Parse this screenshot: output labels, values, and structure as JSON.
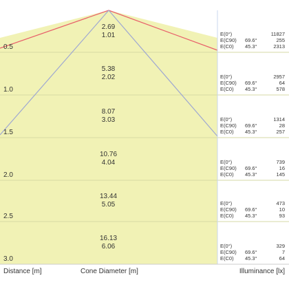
{
  "rows": [
    {
      "distance": "0.5",
      "diam_top": "2.69",
      "diam_bot": "1.01",
      "ill": [
        {
          "label": "E(0°)",
          "angle": "",
          "value": "11827"
        },
        {
          "label": "E(C90)",
          "angle": "69.6°",
          "value": "255"
        },
        {
          "label": "E(C0)",
          "angle": "45.3°",
          "value": "2313"
        }
      ]
    },
    {
      "distance": "1.0",
      "diam_top": "5.38",
      "diam_bot": "2.02",
      "ill": [
        {
          "label": "E(0°)",
          "angle": "",
          "value": "2957"
        },
        {
          "label": "E(C90)",
          "angle": "69.6°",
          "value": "64"
        },
        {
          "label": "E(C0)",
          "angle": "45.3°",
          "value": "578"
        }
      ]
    },
    {
      "distance": "1.5",
      "diam_top": "8.07",
      "diam_bot": "3.03",
      "ill": [
        {
          "label": "E(0°)",
          "angle": "",
          "value": "1314"
        },
        {
          "label": "E(C90)",
          "angle": "69.6°",
          "value": "28"
        },
        {
          "label": "E(C0)",
          "angle": "45.3°",
          "value": "257"
        }
      ]
    },
    {
      "distance": "2.0",
      "diam_top": "10.76",
      "diam_bot": "4.04",
      "ill": [
        {
          "label": "E(0°)",
          "angle": "",
          "value": "739"
        },
        {
          "label": "E(C90)",
          "angle": "69.6°",
          "value": "16"
        },
        {
          "label": "E(C0)",
          "angle": "45.3°",
          "value": "145"
        }
      ]
    },
    {
      "distance": "2.5",
      "diam_top": "13.44",
      "diam_bot": "5.05",
      "ill": [
        {
          "label": "E(0°)",
          "angle": "",
          "value": "473"
        },
        {
          "label": "E(C90)",
          "angle": "69.6°",
          "value": "10"
        },
        {
          "label": "E(C0)",
          "angle": "45.3°",
          "value": "93"
        }
      ]
    },
    {
      "distance": "3.0",
      "diam_top": "16.13",
      "diam_bot": "6.06",
      "ill": [
        {
          "label": "E(0°)",
          "angle": "",
          "value": "329"
        },
        {
          "label": "E(C90)",
          "angle": "69.6°",
          "value": "7"
        },
        {
          "label": "E(C0)",
          "angle": "45.3°",
          "value": "64"
        }
      ]
    }
  ],
  "footer": {
    "distance_label": "Distance [m]",
    "cone_label": "Cone Diameter [m]",
    "illuminance_label": "Illuminance [lx]"
  },
  "colors": {
    "band_fill": "#f3f2c0",
    "cone_fill": "#eef0a8",
    "grid_line": "#d6d9a4",
    "red_beam": "#e8606a",
    "blue_beam": "#9ea7d2",
    "divider": "#c9d7ee"
  }
}
